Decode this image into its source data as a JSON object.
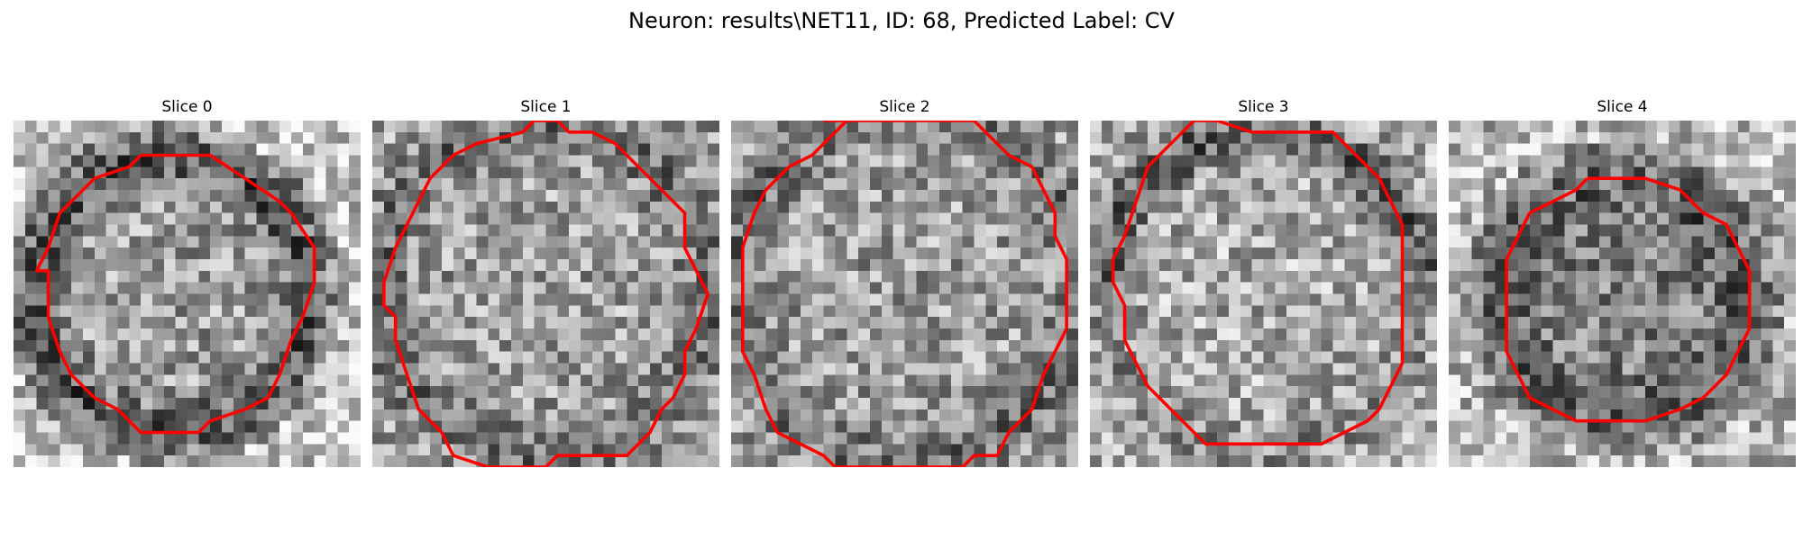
{
  "figure": {
    "title": "Neuron: results\\NET11, ID: 68, Predicted Label: CV"
  },
  "colors": {
    "contour": "#ff0000",
    "background": "#ffffff"
  },
  "slices": [
    {
      "title": "Slice 0",
      "pattern": "ring",
      "contour": [
        [
          11,
          3
        ],
        [
          17,
          3
        ],
        [
          20,
          5
        ],
        [
          23,
          7
        ],
        [
          24,
          8
        ],
        [
          26,
          11
        ],
        [
          26,
          14
        ],
        [
          25,
          17
        ],
        [
          24,
          19
        ],
        [
          23,
          22
        ],
        [
          22,
          24
        ],
        [
          20,
          25
        ],
        [
          17,
          26
        ],
        [
          16,
          27
        ],
        [
          11,
          27
        ],
        [
          9,
          25
        ],
        [
          7,
          24
        ],
        [
          5,
          22
        ],
        [
          4,
          20
        ],
        [
          3,
          17
        ],
        [
          3,
          13
        ],
        [
          2,
          13
        ],
        [
          3,
          11
        ],
        [
          4,
          8
        ],
        [
          5,
          7
        ],
        [
          7,
          5
        ],
        [
          10,
          4
        ]
      ]
    },
    {
      "title": "Slice 1",
      "pattern": "uniform",
      "contour": [
        [
          13,
          1
        ],
        [
          14,
          0
        ],
        [
          16,
          0
        ],
        [
          17,
          1
        ],
        [
          19,
          1
        ],
        [
          21,
          2
        ],
        [
          23,
          4
        ],
        [
          25,
          6
        ],
        [
          27,
          8
        ],
        [
          27,
          11
        ],
        [
          28,
          13
        ],
        [
          29,
          15
        ],
        [
          28,
          18
        ],
        [
          27,
          20
        ],
        [
          27,
          22
        ],
        [
          26,
          24
        ],
        [
          25,
          25
        ],
        [
          24,
          27
        ],
        [
          22,
          29
        ],
        [
          16,
          29
        ],
        [
          15,
          30
        ],
        [
          10,
          30
        ],
        [
          7,
          29
        ],
        [
          6,
          27
        ],
        [
          4,
          25
        ],
        [
          3,
          22
        ],
        [
          2,
          19
        ],
        [
          2,
          17
        ],
        [
          1,
          16
        ],
        [
          1,
          14
        ],
        [
          2,
          11
        ],
        [
          3,
          9
        ],
        [
          4,
          7
        ],
        [
          5,
          5
        ],
        [
          7,
          3
        ],
        [
          9,
          2
        ]
      ]
    },
    {
      "title": "Slice 2",
      "pattern": "uniform",
      "contour": [
        [
          8,
          0
        ],
        [
          10,
          0
        ],
        [
          8,
          2
        ],
        [
          7,
          3
        ],
        [
          5,
          4
        ],
        [
          3,
          6
        ],
        [
          2,
          8
        ],
        [
          1,
          11
        ],
        [
          1,
          14
        ],
        [
          1,
          17
        ],
        [
          1,
          20
        ],
        [
          2,
          22
        ],
        [
          3,
          25
        ],
        [
          4,
          27
        ],
        [
          6,
          28
        ],
        [
          8,
          29
        ],
        [
          9,
          30
        ],
        [
          20,
          30
        ],
        [
          21,
          29
        ],
        [
          23,
          29
        ],
        [
          24,
          27
        ],
        [
          26,
          25
        ],
        [
          27,
          22
        ],
        [
          28,
          20
        ],
        [
          29,
          18
        ],
        [
          29,
          15
        ],
        [
          29,
          12
        ],
        [
          28,
          10
        ],
        [
          28,
          8
        ],
        [
          27,
          6
        ],
        [
          26,
          4
        ],
        [
          24,
          3
        ],
        [
          22,
          1
        ],
        [
          21,
          0
        ],
        [
          19,
          0
        ]
      ]
    },
    {
      "title": "Slice 3",
      "pattern": "ring-upper",
      "contour": [
        [
          9,
          0
        ],
        [
          11,
          0
        ],
        [
          14,
          1
        ],
        [
          21,
          1
        ],
        [
          23,
          3
        ],
        [
          25,
          5
        ],
        [
          26,
          7
        ],
        [
          27,
          9
        ],
        [
          27,
          12
        ],
        [
          27,
          15
        ],
        [
          27,
          18
        ],
        [
          27,
          21
        ],
        [
          26,
          23
        ],
        [
          25,
          25
        ],
        [
          24,
          26
        ],
        [
          22,
          27
        ],
        [
          20,
          28
        ],
        [
          17,
          28
        ],
        [
          10,
          28
        ],
        [
          9,
          27
        ],
        [
          7,
          25
        ],
        [
          5,
          23
        ],
        [
          4,
          21
        ],
        [
          3,
          19
        ],
        [
          3,
          16
        ],
        [
          2,
          14
        ],
        [
          2,
          12
        ],
        [
          3,
          10
        ],
        [
          4,
          7
        ],
        [
          5,
          4
        ],
        [
          7,
          2
        ]
      ]
    },
    {
      "title": "Slice 4",
      "pattern": "ring-dark",
      "contour": [
        [
          12,
          5
        ],
        [
          15,
          5
        ],
        [
          17,
          5
        ],
        [
          20,
          6
        ],
        [
          22,
          8
        ],
        [
          24,
          9
        ],
        [
          25,
          11
        ],
        [
          26,
          13
        ],
        [
          26,
          15
        ],
        [
          26,
          18
        ],
        [
          25,
          20
        ],
        [
          24,
          22
        ],
        [
          22,
          24
        ],
        [
          20,
          25
        ],
        [
          17,
          26
        ],
        [
          13,
          26
        ],
        [
          11,
          26
        ],
        [
          9,
          25
        ],
        [
          7,
          24
        ],
        [
          6,
          22
        ],
        [
          5,
          20
        ],
        [
          5,
          18
        ],
        [
          5,
          15
        ],
        [
          5,
          12
        ],
        [
          6,
          10
        ],
        [
          7,
          8
        ],
        [
          9,
          7
        ],
        [
          11,
          6
        ]
      ]
    }
  ]
}
